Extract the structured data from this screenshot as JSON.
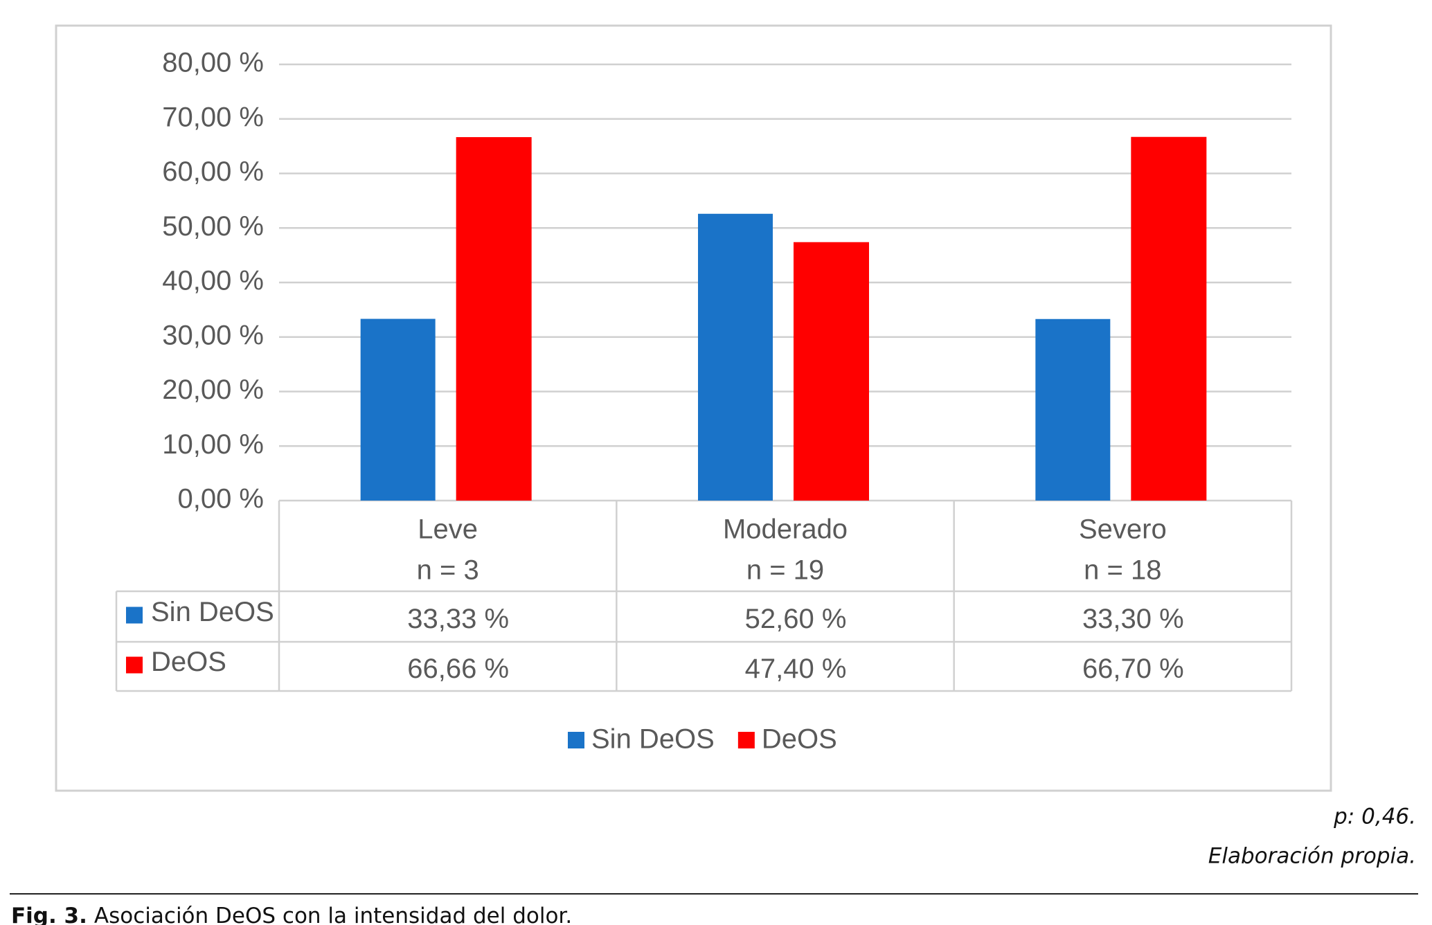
{
  "chart_data": {
    "type": "bar",
    "categories": [
      "Leve",
      "Moderado",
      "Severo"
    ],
    "category_counts": [
      "n = 3",
      "n = 19",
      "n = 18"
    ],
    "series": [
      {
        "name": "Sin DeOS",
        "color": "#1a73c8",
        "values": [
          33.33,
          52.6,
          33.3
        ],
        "value_labels": [
          "33,33 %",
          "52,60 %",
          "33,30 %"
        ]
      },
      {
        "name": "DeOS",
        "color": "#ff0000",
        "values": [
          66.66,
          47.4,
          66.7
        ],
        "value_labels": [
          "66,66 %",
          "47,40 %",
          "66,70 %"
        ]
      }
    ],
    "ylim": [
      0,
      80
    ],
    "yticks": [
      {
        "value": 0,
        "label": "0,00 %"
      },
      {
        "value": 10,
        "label": "10,00 %"
      },
      {
        "value": 20,
        "label": "20,00 %"
      },
      {
        "value": 30,
        "label": "30,00 %"
      },
      {
        "value": 40,
        "label": "40,00 %"
      },
      {
        "value": 50,
        "label": "50,00 %"
      },
      {
        "value": 60,
        "label": "60,00 %"
      },
      {
        "value": 70,
        "label": "70,00 %"
      },
      {
        "value": 80,
        "label": "80,00 %"
      }
    ],
    "grid": true,
    "legend": "bottom"
  },
  "notes": [
    "p: 0,46.",
    "Elaboración propia."
  ],
  "caption": {
    "label": "Fig. 3.",
    "text": "Asociación DeOS con la intensidad del dolor."
  }
}
